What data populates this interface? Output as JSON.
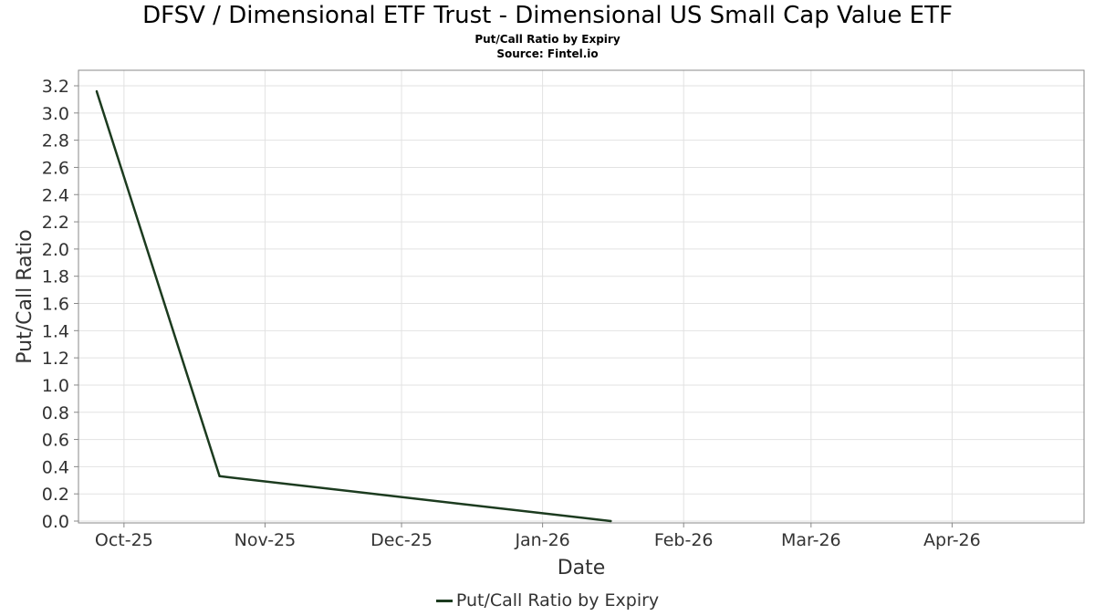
{
  "title": "DFSV / Dimensional ETF Trust - Dimensional US Small Cap Value ETF",
  "subtitle": "Put/Call Ratio by Expiry",
  "source": "Source: Fintel.io",
  "colors": {
    "line": "#1c3b1f",
    "grid": "#e2e2e2",
    "frame": "#888888"
  },
  "chart_data": {
    "type": "line",
    "title": "DFSV / Dimensional ETF Trust - Dimensional US Small Cap Value ETF",
    "subtitle": "Put/Call Ratio by Expiry",
    "xlabel": "Date",
    "ylabel": "Put/Call Ratio",
    "xlim": [
      "2025-09-21",
      "2026-04-30"
    ],
    "ylim": [
      0,
      3.3
    ],
    "grid": true,
    "legend_position": "bottom",
    "x_ticks": [
      {
        "date": "2025-10-01",
        "label": "Oct-25"
      },
      {
        "date": "2025-11-01",
        "label": "Nov-25"
      },
      {
        "date": "2025-12-01",
        "label": "Dec-25"
      },
      {
        "date": "2026-01-01",
        "label": "Jan-26"
      },
      {
        "date": "2026-02-01",
        "label": "Feb-26"
      },
      {
        "date": "2026-03-01",
        "label": "Mar-26"
      },
      {
        "date": "2026-04-01",
        "label": "Apr-26"
      }
    ],
    "y_ticks": [
      "0.0",
      "0.2",
      "0.4",
      "0.6",
      "0.8",
      "1.0",
      "1.2",
      "1.4",
      "1.6",
      "1.8",
      "2.0",
      "2.2",
      "2.4",
      "2.6",
      "2.8",
      "3.0",
      "3.2"
    ],
    "series": [
      {
        "name": "Put/Call Ratio by Expiry",
        "x": [
          "2025-09-25",
          "2025-10-22",
          "2026-01-16"
        ],
        "y": [
          3.16,
          0.33,
          0.0
        ]
      }
    ]
  }
}
